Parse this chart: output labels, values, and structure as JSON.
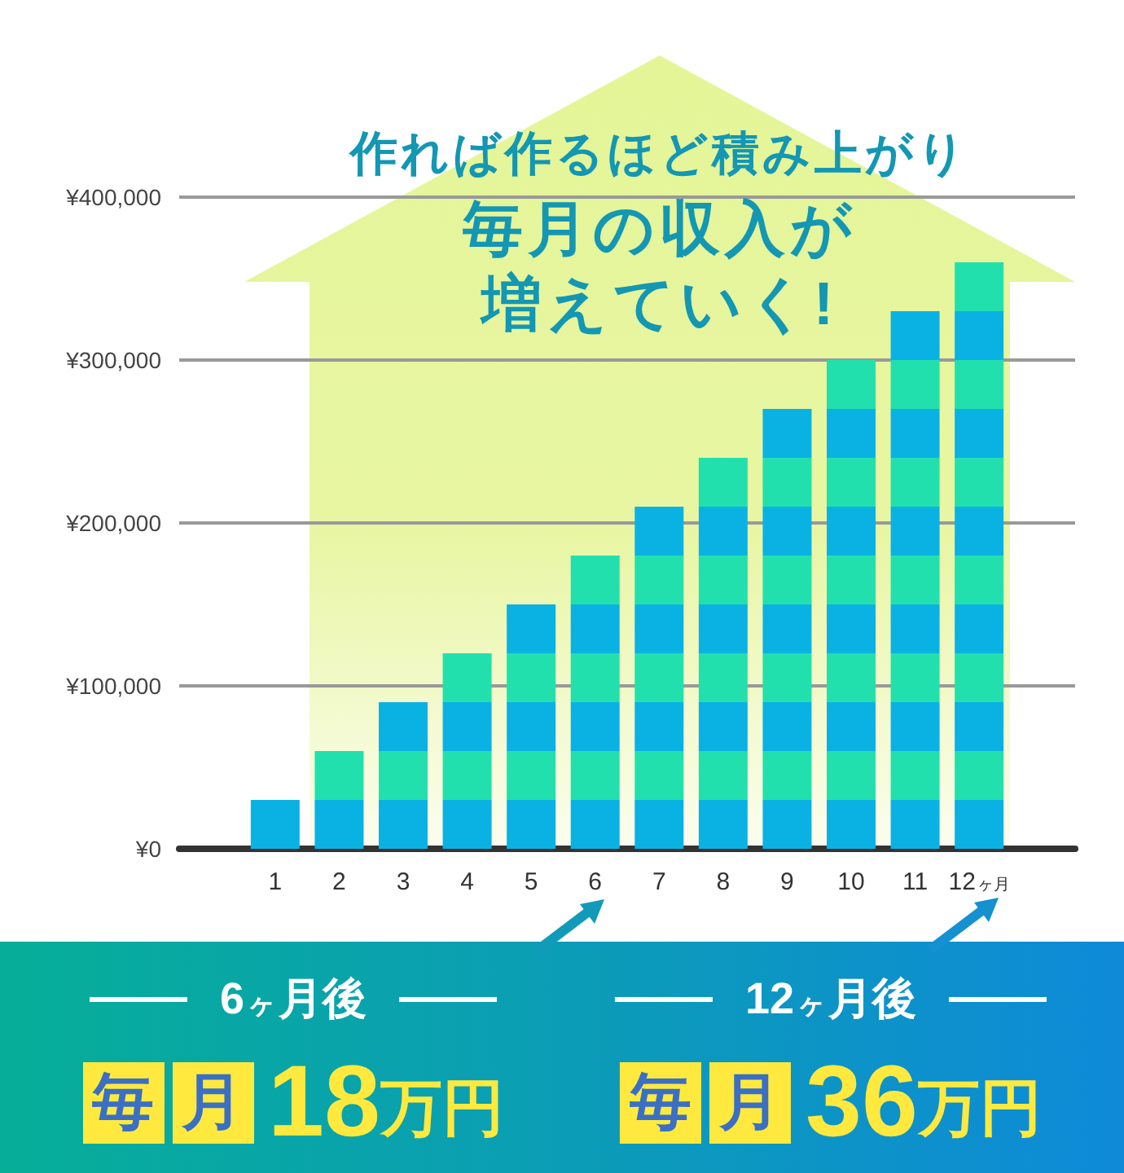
{
  "chart_data": {
    "type": "bar",
    "title": "作れば作るほど積み上がり",
    "subtitle": "毎月の収入が増えていく!",
    "categories": [
      "1",
      "2",
      "3",
      "4",
      "5",
      "6",
      "7",
      "8",
      "9",
      "10",
      "11",
      "12ヶ月"
    ],
    "series": [
      {
        "color": "#0ab2e4",
        "values": [
          30000,
          30000,
          30000,
          30000,
          30000,
          30000,
          30000,
          30000,
          30000,
          30000,
          30000,
          30000
        ]
      },
      {
        "color": "#22e0ae",
        "values": [
          null,
          30000,
          30000,
          30000,
          30000,
          30000,
          30000,
          30000,
          30000,
          30000,
          30000,
          30000
        ]
      },
      {
        "color": "#0ab2e4",
        "values": [
          null,
          null,
          30000,
          30000,
          30000,
          30000,
          30000,
          30000,
          30000,
          30000,
          30000,
          30000
        ]
      },
      {
        "color": "#22e0ae",
        "values": [
          null,
          null,
          null,
          30000,
          30000,
          30000,
          30000,
          30000,
          30000,
          30000,
          30000,
          30000
        ]
      },
      {
        "color": "#0ab2e4",
        "values": [
          null,
          null,
          null,
          null,
          30000,
          30000,
          30000,
          30000,
          30000,
          30000,
          30000,
          30000
        ]
      },
      {
        "color": "#22e0ae",
        "values": [
          null,
          null,
          null,
          null,
          null,
          30000,
          30000,
          30000,
          30000,
          30000,
          30000,
          30000
        ]
      },
      {
        "color": "#0ab2e4",
        "values": [
          null,
          null,
          null,
          null,
          null,
          null,
          30000,
          30000,
          30000,
          30000,
          30000,
          30000
        ]
      },
      {
        "color": "#22e0ae",
        "values": [
          null,
          null,
          null,
          null,
          null,
          null,
          null,
          30000,
          30000,
          30000,
          30000,
          30000
        ]
      },
      {
        "color": "#0ab2e4",
        "values": [
          null,
          null,
          null,
          null,
          null,
          null,
          null,
          null,
          30000,
          30000,
          30000,
          30000
        ]
      },
      {
        "color": "#22e0ae",
        "values": [
          null,
          null,
          null,
          null,
          null,
          null,
          null,
          null,
          null,
          30000,
          30000,
          30000
        ]
      },
      {
        "color": "#0ab2e4",
        "values": [
          null,
          null,
          null,
          null,
          null,
          null,
          null,
          null,
          null,
          null,
          30000,
          30000
        ]
      },
      {
        "color": "#22e0ae",
        "values": [
          null,
          null,
          null,
          null,
          null,
          null,
          null,
          null,
          null,
          null,
          null,
          30000
        ]
      }
    ],
    "stacked": true,
    "ylim": [
      0,
      400000
    ],
    "yticks": [
      {
        "value": 0,
        "label": "¥0"
      },
      {
        "value": 100000,
        "label": "¥100,000"
      },
      {
        "value": 200000,
        "label": "¥200,000"
      },
      {
        "value": 300000,
        "label": "¥300,000"
      },
      {
        "value": 400000,
        "label": "¥400,000"
      }
    ],
    "grid": "y",
    "annotations": [
      "6ヶ月後",
      "毎月18万円",
      "12ヶ月後",
      "毎月36万円"
    ]
  }
}
